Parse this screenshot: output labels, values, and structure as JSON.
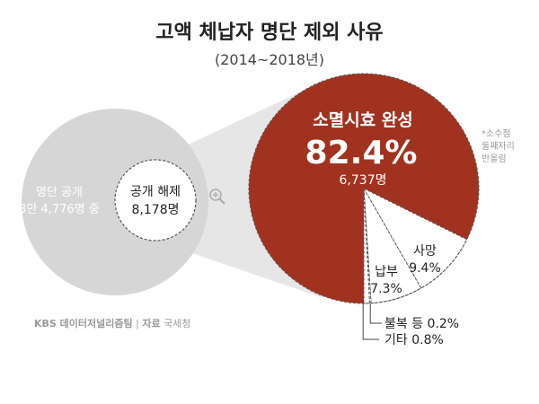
{
  "chart_data": {
    "type": "pie",
    "title": "고액 체납자 명단 제외 사유",
    "subtitle": "(2014~2018년)",
    "note_lines": [
      "*소수점",
      "둘째자리",
      "반올림"
    ],
    "source": "KBS 데이터저널리즘팀 | 자료 국세청",
    "source_parts": {
      "brand": "KBS 데이터저널리즘팀",
      "sep": "|",
      "label": "자료",
      "org": "국세청"
    },
    "overview": {
      "total_label": "명단 공개",
      "total_value": "3만 4,776명 중",
      "subset_label": "공개 해제",
      "subset_value": "8,178명"
    },
    "slices": [
      {
        "name": "소멸시효 완성",
        "value": 82.4,
        "display": "82.4%",
        "count": "6,737명",
        "color": "#a1321f"
      },
      {
        "name": "사망",
        "value": 9.4,
        "display": "9.4%",
        "color": "#ffffff"
      },
      {
        "name": "납부",
        "value": 7.3,
        "display": "7.3%",
        "color": "#ffffff"
      },
      {
        "name": "불복 등",
        "value": 0.2,
        "display": "0.2%",
        "color": "#ffffff"
      },
      {
        "name": "기타",
        "value": 0.8,
        "display": "0.8%",
        "color": "#ffffff"
      }
    ],
    "colors": {
      "gray_circle": "#d6d6d6",
      "accent": "#a1321f",
      "outline": "#555555"
    }
  }
}
